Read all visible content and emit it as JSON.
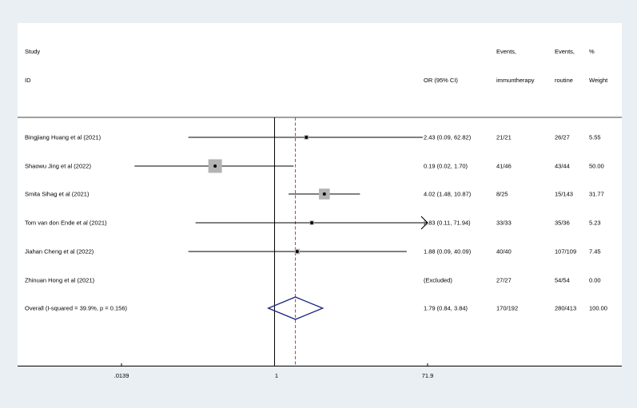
{
  "chart_data": {
    "type": "forest",
    "header": {
      "study_line1": "Study",
      "study_line2": "ID",
      "or_label": "OR (95% CI)",
      "events_immuno_line1": "Events,",
      "events_immuno_line2": "immuntherapy",
      "events_routine_line1": "Events,",
      "events_routine_line2": "routine",
      "weight_line1": "%",
      "weight_line2": "Weight"
    },
    "x_scale": "log",
    "x_ticks": [
      {
        "value": 0.0139,
        "label": ".0139"
      },
      {
        "value": 1,
        "label": "1"
      },
      {
        "value": 71.9,
        "label": "71.9"
      }
    ],
    "xlim": [
      0.0139,
      71.9
    ],
    "null_line": 1,
    "overall_line": 1.79,
    "studies": [
      {
        "label": "Bingjiang Huang et al (2021)",
        "or": 2.43,
        "ci_low": 0.09,
        "ci_high": 62.82,
        "or_text": "2.43 (0.09, 62.82)",
        "events_immuno": "21/21",
        "events_routine": "26/27",
        "weight": 5.55,
        "weight_text": "5.55"
      },
      {
        "label": "Shaowu Jing et al (2022)",
        "or": 0.19,
        "ci_low": 0.02,
        "ci_high": 1.7,
        "or_text": "0.19 (0.02, 1.70)",
        "events_immuno": "41/46",
        "events_routine": "43/44",
        "weight": 50.0,
        "weight_text": "50.00"
      },
      {
        "label": "Smita Sihag et al (2021)",
        "or": 4.02,
        "ci_low": 1.48,
        "ci_high": 10.87,
        "or_text": "4.02 (1.48, 10.87)",
        "events_immuno": "8/25",
        "events_routine": "15/143",
        "weight": 31.77,
        "weight_text": "31.77"
      },
      {
        "label": "Tom van don Ende et al (2021)",
        "or": 2.83,
        "ci_low": 0.11,
        "ci_high": 71.94,
        "or_text": "2.83 (0.11, 71.94)",
        "events_immuno": "33/33",
        "events_routine": "35/36",
        "weight": 5.23,
        "weight_text": "5.23"
      },
      {
        "label": "Jiahan Cheng et al (2022)",
        "or": 1.88,
        "ci_low": 0.09,
        "ci_high": 40.09,
        "or_text": "1.88 (0.09, 40.09)",
        "events_immuno": "40/40",
        "events_routine": "107/109",
        "weight": 7.45,
        "weight_text": "7.45"
      },
      {
        "label": "Zhinuan Hong et al (2021)",
        "or": null,
        "ci_low": null,
        "ci_high": null,
        "or_text": "(Excluded)",
        "events_immuno": "27/27",
        "events_routine": "54/54",
        "weight": 0.0,
        "weight_text": "0.00"
      }
    ],
    "overall": {
      "label": "Overall  (I-squared = 39.9%, p = 0.156)",
      "or": 1.79,
      "ci_low": 0.84,
      "ci_high": 3.84,
      "or_text": "1.79 (0.84, 3.84)",
      "events_immuno": "170/192",
      "events_routine": "280/413",
      "weight_text": "100.00"
    },
    "colors": {
      "background": "#e9eff3",
      "panel": "#ffffff",
      "line": "#000000",
      "weight_box": "#b3b3b3",
      "overall_line": "#c0392b",
      "diamond": "#1a237e"
    }
  }
}
